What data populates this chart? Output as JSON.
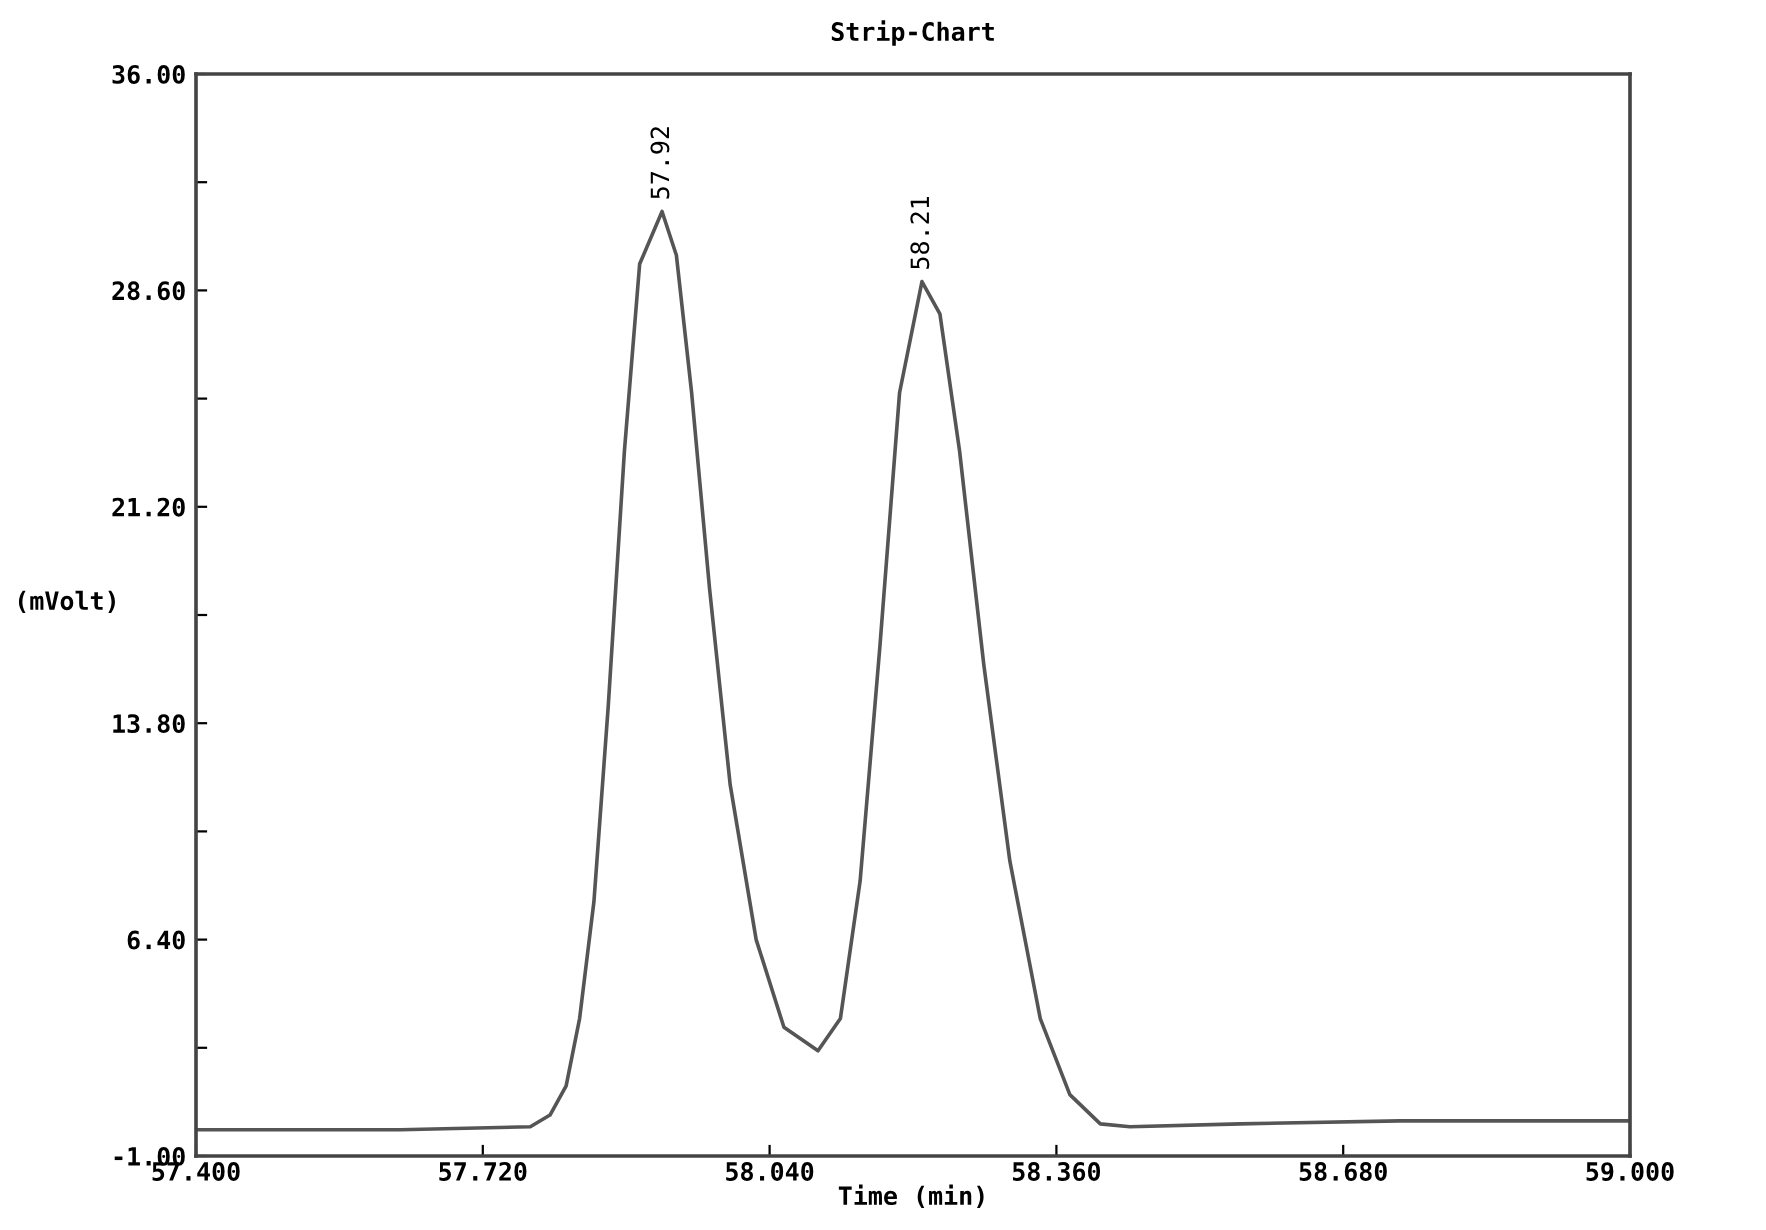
{
  "chart_data": {
    "type": "line",
    "title": "Strip-Chart",
    "xlabel": "Time (min)",
    "ylabel": "(mVolt)",
    "x": [
      57.4,
      57.628,
      57.773,
      57.795,
      57.813,
      57.828,
      57.844,
      57.86,
      57.878,
      57.895,
      57.92,
      57.936,
      57.953,
      57.973,
      57.996,
      58.025,
      58.056,
      58.094,
      58.119,
      58.141,
      58.163,
      58.185,
      58.21,
      58.23,
      58.252,
      58.279,
      58.308,
      58.342,
      58.375,
      58.409,
      58.442,
      58.565,
      58.743,
      59.0
    ],
    "series": [
      {
        "color": "#555555",
        "values": [
          -0.1,
          -0.1,
          0.0,
          0.4,
          1.4,
          3.7,
          7.7,
          14.4,
          23.1,
          29.5,
          31.3,
          29.8,
          25.1,
          18.4,
          11.7,
          6.4,
          3.4,
          2.6,
          3.7,
          8.4,
          16.4,
          25.1,
          28.9,
          27.8,
          23.1,
          15.8,
          9.1,
          3.7,
          1.1,
          0.1,
          0.0,
          0.1,
          0.2,
          0.2
        ]
      }
    ],
    "xlim": [
      57.4,
      59.0
    ],
    "xticks": [
      {
        "value": 57.4,
        "label": "57.400"
      },
      {
        "value": 57.72,
        "label": "57.720"
      },
      {
        "value": 58.04,
        "label": "58.040"
      },
      {
        "value": 58.36,
        "label": "58.360"
      },
      {
        "value": 58.68,
        "label": "58.680"
      },
      {
        "value": 59.0,
        "label": "59.000"
      }
    ],
    "ylim": [
      -1,
      36
    ],
    "yticks": [
      {
        "value": -1,
        "label": "-1.00"
      },
      {
        "value": 2.7,
        "label": null
      },
      {
        "value": 6.4,
        "label": "6.40"
      },
      {
        "value": 10.1,
        "label": null
      },
      {
        "value": 13.8,
        "label": "13.80"
      },
      {
        "value": 17.5,
        "label": null
      },
      {
        "value": 21.2,
        "label": "21.20"
      },
      {
        "value": 24.9,
        "label": null
      },
      {
        "value": 28.6,
        "label": "28.60"
      },
      {
        "value": 32.3,
        "label": null
      },
      {
        "value": 36,
        "label": "36.00"
      }
    ],
    "annotations": [
      {
        "text": "57.92",
        "x": 57.92,
        "y": 31.3
      },
      {
        "text": "58.21",
        "x": 58.21,
        "y": 28.9
      }
    ],
    "grid": false,
    "legend": false,
    "marker": "none",
    "line_style": "solid"
  }
}
